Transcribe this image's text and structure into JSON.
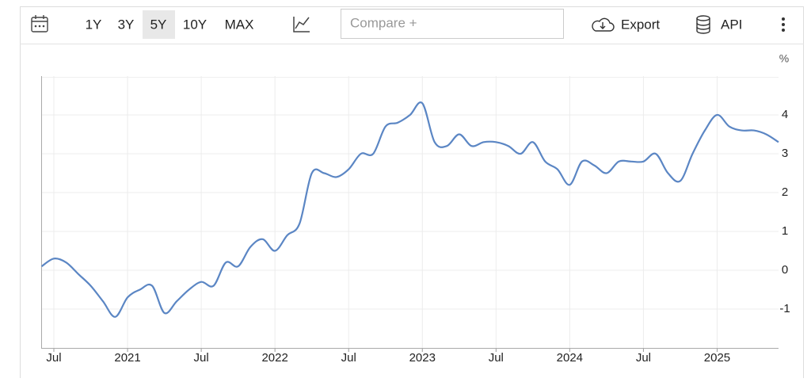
{
  "toolbar": {
    "ranges": [
      "1Y",
      "3Y",
      "5Y",
      "10Y",
      "MAX"
    ],
    "compare": "Compare +",
    "export": "Export",
    "api": "API"
  },
  "chart_data": {
    "type": "line",
    "unit": "%",
    "color": "#5b86c4",
    "grid": true,
    "x": [
      "2020-06",
      "2020-07",
      "2020-08",
      "2020-09",
      "2020-10",
      "2020-11",
      "2020-12",
      "2021-01",
      "2021-02",
      "2021-03",
      "2021-04",
      "2021-05",
      "2021-06",
      "2021-07",
      "2021-08",
      "2021-09",
      "2021-10",
      "2021-11",
      "2021-12",
      "2022-01",
      "2022-02",
      "2022-03",
      "2022-04",
      "2022-05",
      "2022-06",
      "2022-07",
      "2022-08",
      "2022-09",
      "2022-10",
      "2022-11",
      "2022-12",
      "2023-01",
      "2023-02",
      "2023-03",
      "2023-04",
      "2023-05",
      "2023-06",
      "2023-07",
      "2023-08",
      "2023-09",
      "2023-10",
      "2023-11",
      "2023-12",
      "2024-01",
      "2024-02",
      "2024-03",
      "2024-04",
      "2024-05",
      "2024-06",
      "2024-07",
      "2024-08",
      "2024-09",
      "2024-10",
      "2024-11",
      "2024-12",
      "2025-01",
      "2025-02",
      "2025-03",
      "2025-04",
      "2025-05",
      "2025-06"
    ],
    "values": [
      0.1,
      0.3,
      0.2,
      -0.1,
      -0.4,
      -0.8,
      -1.2,
      -0.7,
      -0.5,
      -0.4,
      -1.1,
      -0.8,
      -0.5,
      -0.3,
      -0.4,
      0.2,
      0.1,
      0.6,
      0.8,
      0.5,
      0.9,
      1.2,
      2.5,
      2.5,
      2.4,
      2.6,
      3.0,
      3.0,
      3.7,
      3.8,
      4.0,
      4.3,
      3.3,
      3.2,
      3.5,
      3.2,
      3.3,
      3.3,
      3.2,
      3.0,
      3.3,
      2.8,
      2.6,
      2.2,
      2.8,
      2.7,
      2.5,
      2.8,
      2.8,
      2.8,
      3.0,
      2.5,
      2.3,
      3.0,
      3.6,
      4.0,
      3.7,
      3.6,
      3.6,
      3.5,
      3.3
    ],
    "xlim": [
      "2020-06",
      "2025-06"
    ],
    "xticks": [
      {
        "value": "2020-07",
        "label": "Jul"
      },
      {
        "value": "2021-01",
        "label": "2021"
      },
      {
        "value": "2021-07",
        "label": "Jul"
      },
      {
        "value": "2022-01",
        "label": "2022"
      },
      {
        "value": "2022-07",
        "label": "Jul"
      },
      {
        "value": "2023-01",
        "label": "2023"
      },
      {
        "value": "2023-07",
        "label": "Jul"
      },
      {
        "value": "2024-01",
        "label": "2024"
      },
      {
        "value": "2024-07",
        "label": "Jul"
      },
      {
        "value": "2025-01",
        "label": "2025"
      }
    ],
    "ylim": [
      -2,
      5
    ],
    "yticks": [
      -1,
      0,
      1,
      2,
      3,
      4
    ]
  }
}
